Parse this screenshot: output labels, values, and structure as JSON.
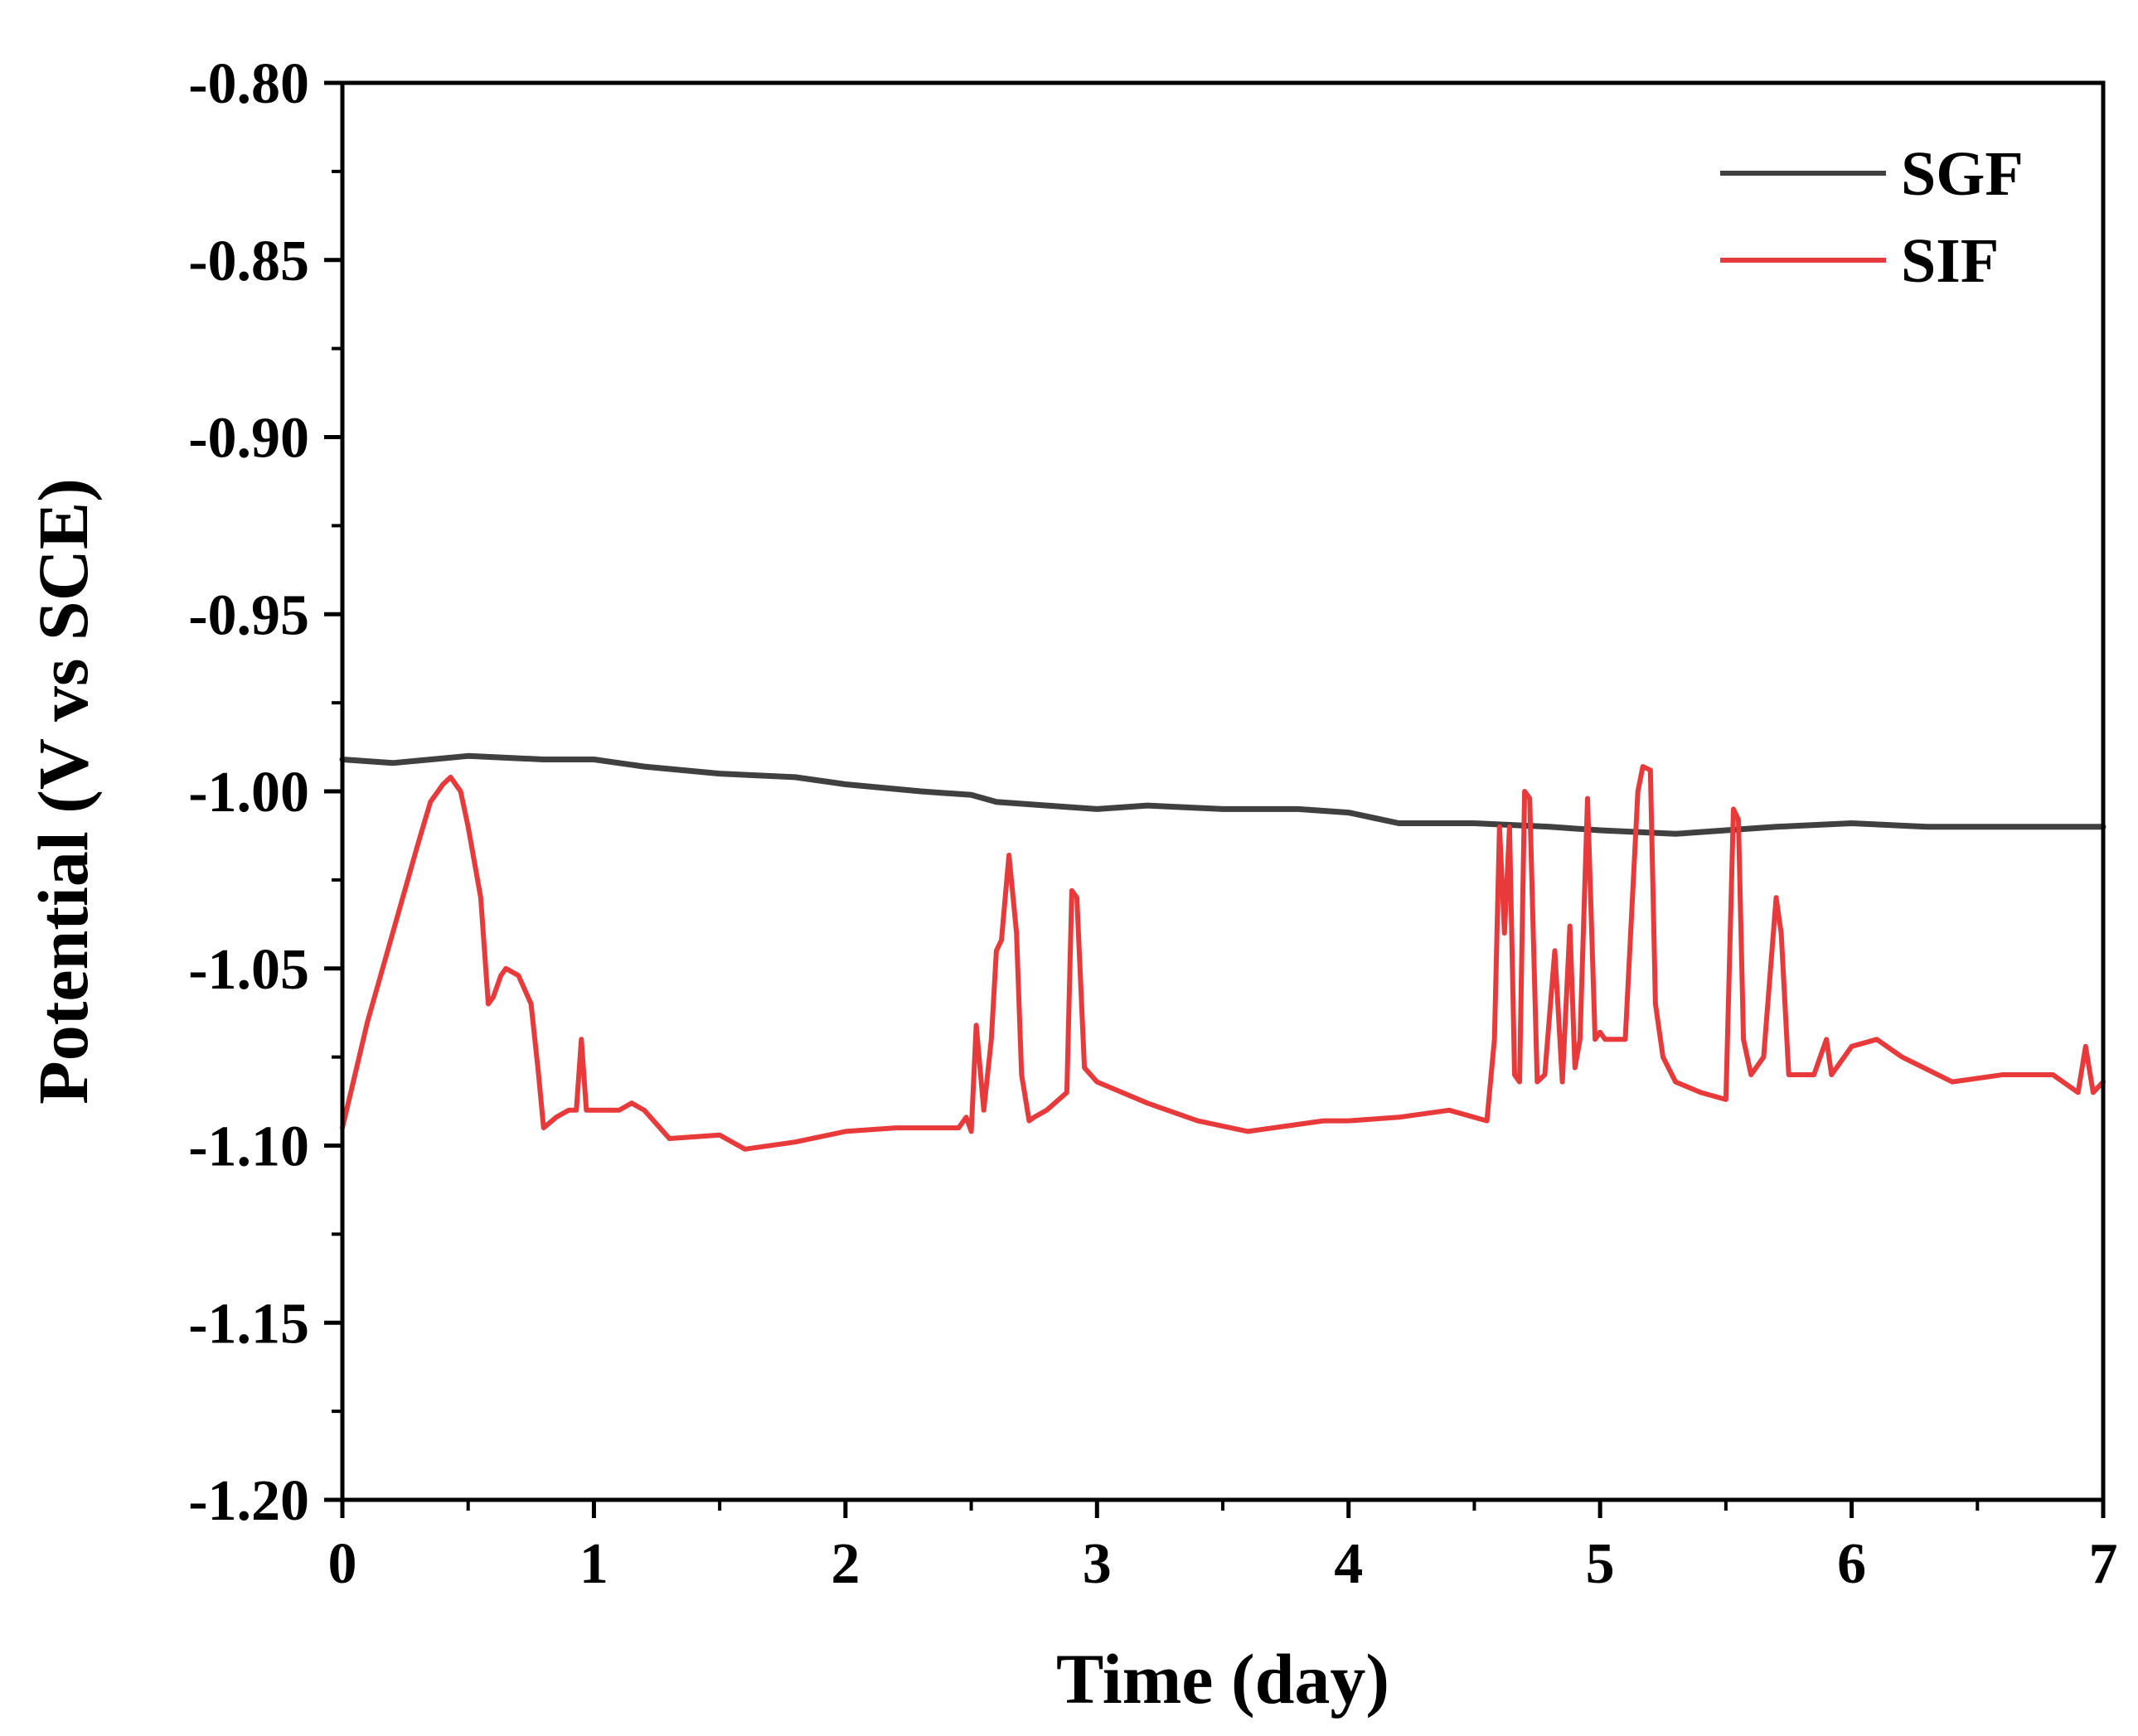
{
  "chart_data": {
    "type": "line",
    "title": "",
    "xlabel": "Time (day)",
    "ylabel": "Potential (V vs SCE)",
    "xlim": [
      0,
      7
    ],
    "ylim": [
      -1.2,
      -0.8
    ],
    "xticks": [
      0,
      1,
      2,
      3,
      4,
      5,
      6,
      7
    ],
    "xtick_labels": [
      "0",
      "1",
      "2",
      "3",
      "4",
      "5",
      "6",
      "7"
    ],
    "yticks": [
      -0.8,
      -0.85,
      -0.9,
      -0.95,
      -1.0,
      -1.05,
      -1.1,
      -1.15,
      -1.2
    ],
    "ytick_labels": [
      "-0.80",
      "-0.85",
      "-0.90",
      "-0.95",
      "-1.00",
      "-1.05",
      "-1.10",
      "-1.15",
      "-1.20"
    ],
    "grid": false,
    "legend_position": "top-right",
    "series": [
      {
        "name": "SGF",
        "color": "#404040",
        "x": [
          0,
          0.2,
          0.5,
          0.8,
          1.0,
          1.2,
          1.5,
          1.8,
          2.0,
          2.3,
          2.5,
          2.6,
          2.8,
          3.0,
          3.2,
          3.5,
          3.8,
          4.0,
          4.2,
          4.5,
          4.8,
          5.0,
          5.3,
          5.5,
          5.7,
          6.0,
          6.3,
          6.6,
          7.0
        ],
        "values": [
          -0.991,
          -0.992,
          -0.99,
          -0.991,
          -0.991,
          -0.993,
          -0.995,
          -0.996,
          -0.998,
          -1.0,
          -1.001,
          -1.003,
          -1.004,
          -1.005,
          -1.004,
          -1.005,
          -1.005,
          -1.006,
          -1.009,
          -1.009,
          -1.01,
          -1.011,
          -1.012,
          -1.011,
          -1.01,
          -1.009,
          -1.01,
          -1.01,
          -1.01
        ]
      },
      {
        "name": "SIF",
        "color": "#e8393b",
        "x": [
          0,
          0.05,
          0.1,
          0.2,
          0.3,
          0.35,
          0.4,
          0.43,
          0.47,
          0.5,
          0.55,
          0.58,
          0.6,
          0.63,
          0.65,
          0.7,
          0.75,
          0.78,
          0.8,
          0.85,
          0.9,
          0.93,
          0.95,
          0.97,
          1.0,
          1.1,
          1.15,
          1.2,
          1.3,
          1.5,
          1.6,
          1.8,
          2.0,
          2.2,
          2.45,
          2.48,
          2.5,
          2.52,
          2.55,
          2.58,
          2.6,
          2.62,
          2.65,
          2.68,
          2.7,
          2.73,
          2.75,
          2.8,
          2.88,
          2.9,
          2.92,
          2.95,
          3.0,
          3.2,
          3.4,
          3.6,
          3.7,
          3.9,
          4.0,
          4.2,
          4.4,
          4.55,
          4.58,
          4.6,
          4.62,
          4.64,
          4.66,
          4.68,
          4.7,
          4.72,
          4.75,
          4.78,
          4.82,
          4.85,
          4.88,
          4.9,
          4.92,
          4.95,
          4.98,
          5.0,
          5.02,
          5.1,
          5.15,
          5.17,
          5.2,
          5.22,
          5.25,
          5.3,
          5.4,
          5.5,
          5.53,
          5.55,
          5.57,
          5.6,
          5.65,
          5.7,
          5.72,
          5.75,
          5.78,
          5.85,
          5.9,
          5.92,
          6.0,
          6.1,
          6.2,
          6.4,
          6.6,
          6.8,
          6.9,
          6.93,
          6.96,
          7.0
        ],
        "values": [
          -1.095,
          -1.08,
          -1.065,
          -1.04,
          -1.015,
          -1.003,
          -0.998,
          -0.996,
          -1.0,
          -1.01,
          -1.03,
          -1.06,
          -1.058,
          -1.052,
          -1.05,
          -1.052,
          -1.06,
          -1.08,
          -1.095,
          -1.092,
          -1.09,
          -1.09,
          -1.07,
          -1.09,
          -1.09,
          -1.09,
          -1.088,
          -1.09,
          -1.098,
          -1.097,
          -1.101,
          -1.099,
          -1.096,
          -1.095,
          -1.095,
          -1.092,
          -1.096,
          -1.066,
          -1.09,
          -1.07,
          -1.045,
          -1.042,
          -1.018,
          -1.04,
          -1.08,
          -1.093,
          -1.092,
          -1.09,
          -1.085,
          -1.028,
          -1.03,
          -1.078,
          -1.082,
          -1.088,
          -1.093,
          -1.096,
          -1.095,
          -1.093,
          -1.093,
          -1.092,
          -1.09,
          -1.093,
          -1.07,
          -1.01,
          -1.04,
          -1.01,
          -1.08,
          -1.082,
          -1.0,
          -1.002,
          -1.082,
          -1.08,
          -1.045,
          -1.082,
          -1.038,
          -1.078,
          -1.07,
          -1.002,
          -1.07,
          -1.068,
          -1.07,
          -1.07,
          -1.0,
          -0.993,
          -0.994,
          -1.06,
          -1.075,
          -1.082,
          -1.085,
          -1.087,
          -1.005,
          -1.008,
          -1.07,
          -1.08,
          -1.075,
          -1.03,
          -1.04,
          -1.08,
          -1.08,
          -1.08,
          -1.07,
          -1.08,
          -1.072,
          -1.07,
          -1.075,
          -1.082,
          -1.08,
          -1.08,
          -1.085,
          -1.072,
          -1.085,
          -1.082
        ]
      }
    ]
  }
}
